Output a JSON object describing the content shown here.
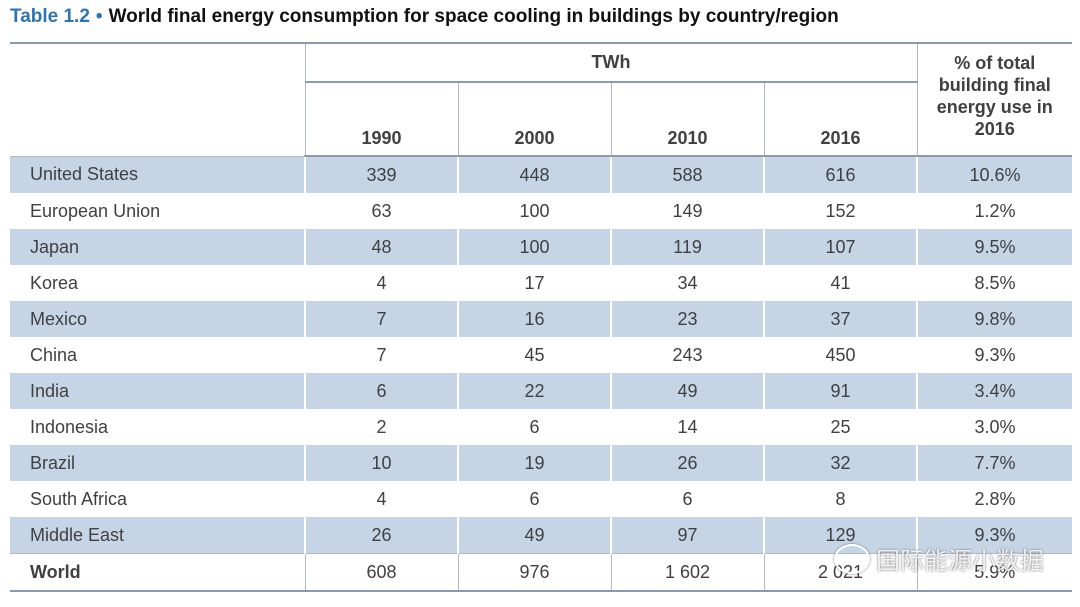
{
  "header": {
    "label": "Table 1.2",
    "bullet": "•",
    "title": "World final energy consumption for space cooling in buildings by country/region"
  },
  "table": {
    "unit": "TWh",
    "share_header": "% of total building final energy use in 2016",
    "years": [
      "1990",
      "2000",
      "2010",
      "2016"
    ],
    "rows": [
      [
        "United States",
        "339",
        "448",
        "588",
        "616",
        "10.6%"
      ],
      [
        "European Union",
        "63",
        "100",
        "149",
        "152",
        "1.2%"
      ],
      [
        "Japan",
        "48",
        "100",
        "119",
        "107",
        "9.5%"
      ],
      [
        "Korea",
        "4",
        "17",
        "34",
        "41",
        "8.5%"
      ],
      [
        "Mexico",
        "7",
        "16",
        "23",
        "37",
        "9.8%"
      ],
      [
        "China",
        "7",
        "45",
        "243",
        "450",
        "9.3%"
      ],
      [
        "India",
        "6",
        "22",
        "49",
        "91",
        "3.4%"
      ],
      [
        "Indonesia",
        "2",
        "6",
        "14",
        "25",
        "3.0%"
      ],
      [
        "Brazil",
        "10",
        "19",
        "26",
        "32",
        "7.7%"
      ],
      [
        "South Africa",
        "4",
        "6",
        "6",
        "8",
        "2.8%"
      ],
      [
        "Middle East",
        "26",
        "49",
        "97",
        "129",
        "9.3%"
      ],
      [
        "World",
        "608",
        "976",
        "1 602",
        "2 021",
        "5.9%"
      ]
    ]
  },
  "watermark": "国际能源小数据"
}
